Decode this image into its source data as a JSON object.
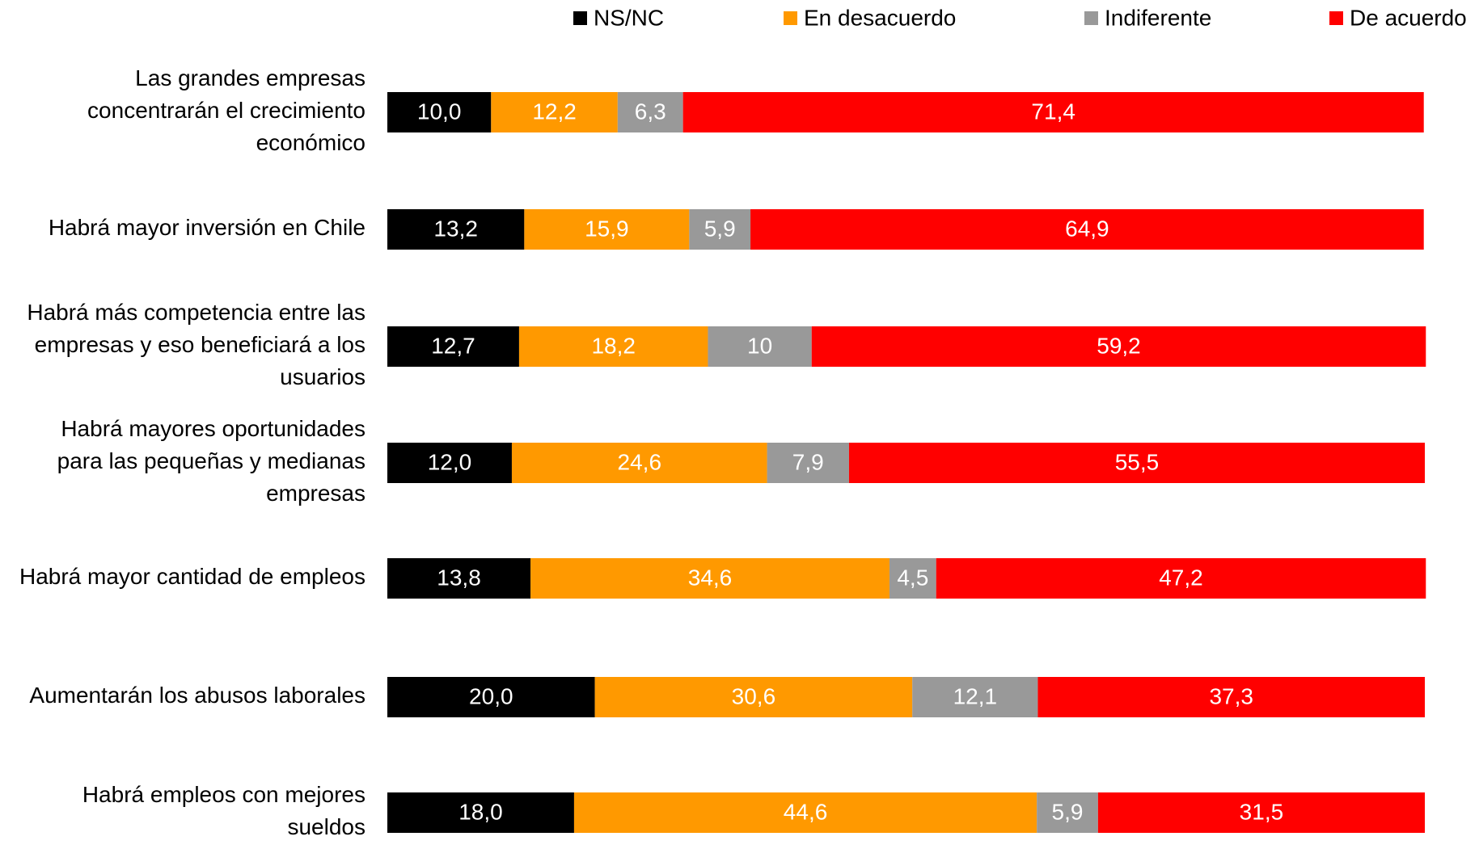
{
  "chart_data": {
    "type": "stacked_bar_horizontal",
    "categories": [
      "Las grandes empresas concentrarán el crecimiento económico",
      "Habrá mayor inversión en Chile",
      "Habrá más competencia entre las empresas y eso beneficiará a los usuarios",
      "Habrá mayores oportunidades para las pequeñas y medianas empresas",
      "Habrá mayor cantidad de empleos",
      "Aumentarán los abusos laborales",
      "Habrá empleos con mejores sueldos"
    ],
    "series": [
      {
        "name": "NS/NC",
        "color": "#000000",
        "values": [
          10.0,
          13.2,
          12.7,
          12.0,
          13.8,
          20.0,
          18.0
        ],
        "value_labels": [
          "10,0",
          "13,2",
          "12,7",
          "12,0",
          "13,8",
          "20,0",
          "18,0"
        ]
      },
      {
        "name": "En desacuerdo",
        "color": "#ff9900",
        "values": [
          12.2,
          15.9,
          18.2,
          24.6,
          34.6,
          30.6,
          44.6
        ],
        "value_labels": [
          "12,2",
          "15,9",
          "18,2",
          "24,6",
          "34,6",
          "30,6",
          "44,6"
        ]
      },
      {
        "name": "Indiferente",
        "color": "#999999",
        "values": [
          6.3,
          5.9,
          10,
          7.9,
          4.5,
          12.1,
          5.9
        ],
        "value_labels": [
          "6,3",
          "5,9",
          "10",
          "7,9",
          "4,5",
          "12,1",
          "5,9"
        ]
      },
      {
        "name": "De acuerdo",
        "color": "#ff0000",
        "values": [
          71.4,
          64.9,
          59.2,
          55.5,
          47.2,
          37.3,
          31.5
        ],
        "value_labels": [
          "71,4",
          "64,9",
          "59,2",
          "55,5",
          "47,2",
          "37,3",
          "31,5"
        ]
      }
    ],
    "xlim": [
      0,
      100
    ],
    "legend": "top"
  }
}
